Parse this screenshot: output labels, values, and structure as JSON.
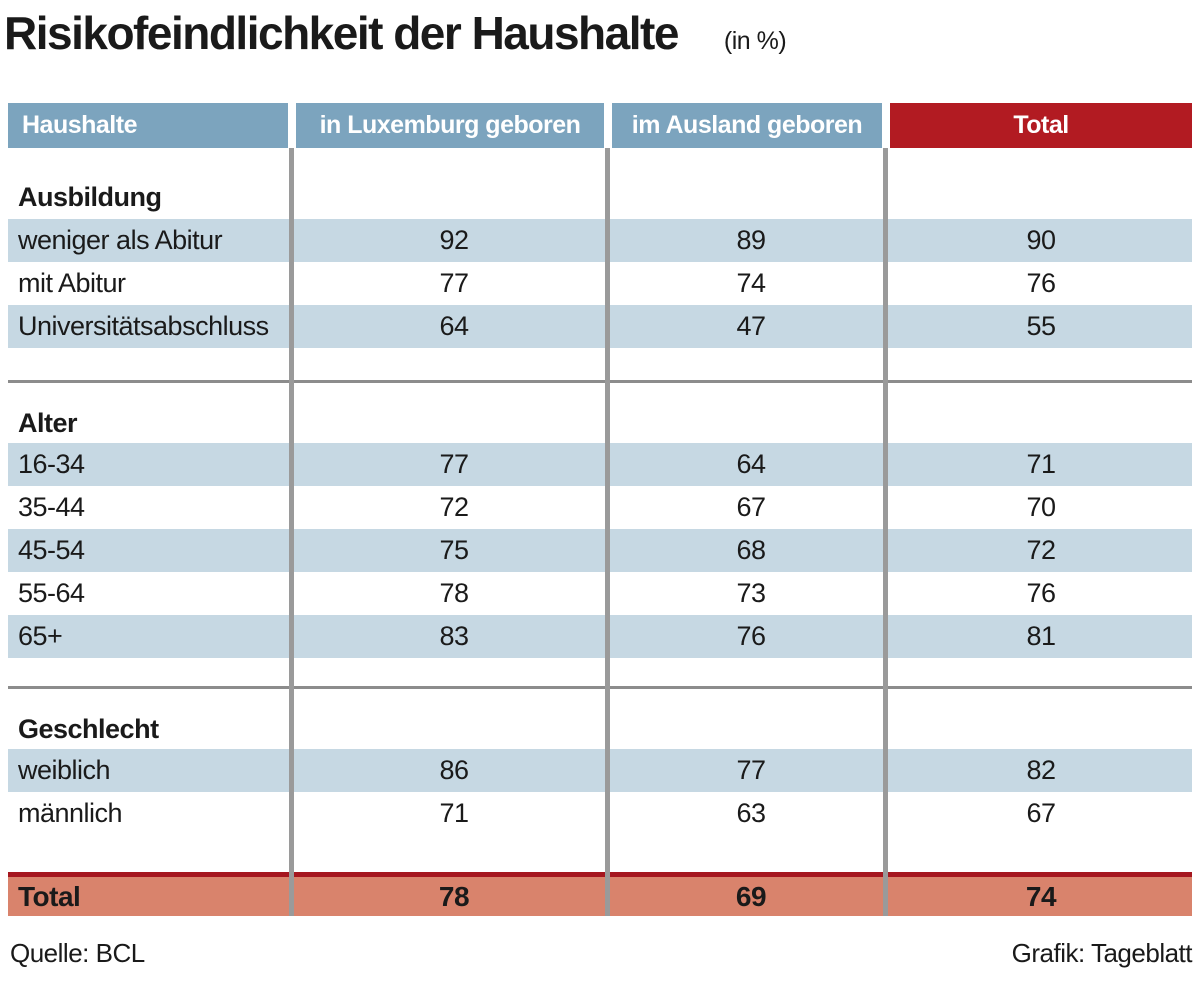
{
  "header": {
    "title": "Risikofeindlichkeit der Haushalte",
    "subtitle": "(in %)"
  },
  "chart_data": {
    "type": "table",
    "title": "Risikofeindlichkeit der Haushalte (in %)",
    "columns": [
      "Haushalte",
      "in Luxemburg geboren",
      "im Ausland geboren",
      "Total"
    ],
    "sections": [
      {
        "label": "Ausbildung",
        "rows": [
          {
            "label": "weniger als Abitur",
            "values": [
              92,
              89,
              90
            ]
          },
          {
            "label": "mit Abitur",
            "values": [
              77,
              74,
              76
            ]
          },
          {
            "label": "Universitätsabschluss",
            "values": [
              64,
              47,
              55
            ]
          }
        ]
      },
      {
        "label": "Alter",
        "rows": [
          {
            "label": "16-34",
            "values": [
              77,
              64,
              71
            ]
          },
          {
            "label": "35-44",
            "values": [
              72,
              67,
              70
            ]
          },
          {
            "label": "45-54",
            "values": [
              75,
              68,
              72
            ]
          },
          {
            "label": "55-64",
            "values": [
              78,
              73,
              76
            ]
          },
          {
            "label": "65+",
            "values": [
              83,
              76,
              81
            ]
          }
        ]
      },
      {
        "label": "Geschlecht",
        "rows": [
          {
            "label": "weiblich",
            "values": [
              86,
              77,
              82
            ]
          },
          {
            "label": "männlich",
            "values": [
              71,
              63,
              67
            ]
          }
        ]
      }
    ],
    "total": {
      "label": "Total",
      "values": [
        78,
        69,
        74
      ]
    }
  },
  "footer": {
    "source": "Quelle: BCL",
    "credit": "Grafik: Tageblatt"
  },
  "colors": {
    "header_blue": "#7ca4be",
    "header_red": "#b21b22",
    "row_light_blue": "#c6d8e3",
    "total_salmon": "#d9836c",
    "total_border_red": "#a5161f",
    "grid_gray": "#9a9a9a",
    "text": "#1a1a1a"
  }
}
